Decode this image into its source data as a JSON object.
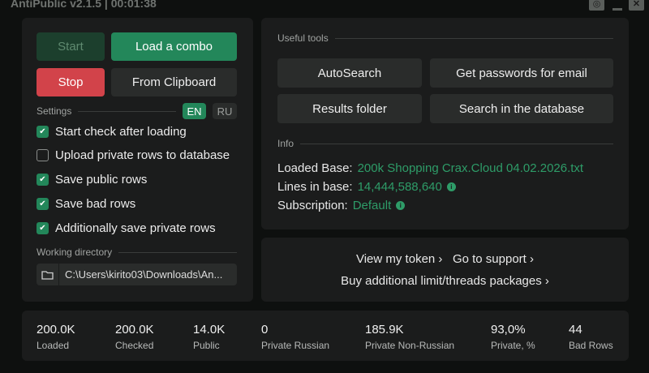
{
  "window": {
    "title": "AntiPublic v2.1.5 | 00:01:38",
    "icons": [
      "camera-icon",
      "minimize-icon",
      "close-icon"
    ]
  },
  "controls": {
    "start": "Start",
    "load_combo": "Load a combo",
    "stop": "Stop",
    "from_clipboard": "From Clipboard"
  },
  "settings": {
    "label": "Settings",
    "lang_en": "EN",
    "lang_ru": "RU",
    "active_lang": "EN",
    "options": [
      {
        "label": "Start check after loading",
        "checked": true
      },
      {
        "label": "Upload private rows to database",
        "checked": false
      },
      {
        "label": "Save public rows",
        "checked": true
      },
      {
        "label": "Save bad rows",
        "checked": true
      },
      {
        "label": "Additionally save private rows",
        "checked": true
      }
    ]
  },
  "working_directory": {
    "label": "Working directory",
    "value": "C:\\Users\\kirito03\\Downloads\\An..."
  },
  "tools": {
    "label": "Useful tools",
    "buttons": [
      "AutoSearch",
      "Get passwords for email",
      "Results folder",
      "Search in the database"
    ]
  },
  "info": {
    "label": "Info",
    "loaded_base_label": "Loaded Base:",
    "loaded_base": "200k Shopping Crax.Cloud 04.02.2026.txt",
    "lines_label": "Lines in base:",
    "lines": "14,444,588,640",
    "subscription_label": "Subscription:",
    "subscription": "Default"
  },
  "links": {
    "token": "View my token ›",
    "support": "Go to support ›",
    "buy": "Buy additional limit/threads packages ›"
  },
  "stats": [
    {
      "value": "200.0K",
      "label": "Loaded"
    },
    {
      "value": "200.0K",
      "label": "Checked"
    },
    {
      "value": "14.0K",
      "label": "Public"
    },
    {
      "value": "0",
      "label": "Private Russian"
    },
    {
      "value": "185.9K",
      "label": "Private Non-Russian"
    },
    {
      "value": "93,0%",
      "label": "Private, %"
    },
    {
      "value": "44",
      "label": "Bad Rows"
    }
  ],
  "colors": {
    "accent": "#23875a",
    "danger": "#d2434a",
    "bg": "#0e100f",
    "panel": "#1b1c1c"
  }
}
